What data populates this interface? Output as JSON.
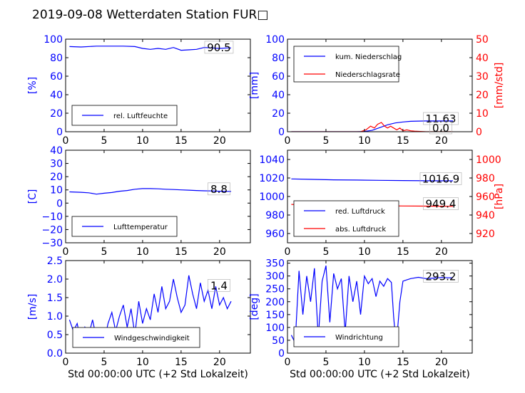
{
  "figure_title": "2019-09-08 Wetterdaten Station FUR□",
  "colors": {
    "blue": "#0000ff",
    "red": "#ff0000",
    "black": "#000000",
    "light_blue": "#8080ff"
  },
  "chart_data": [
    {
      "id": "humidity",
      "type": "line",
      "xlim": [
        0,
        24
      ],
      "ylim": [
        0,
        100
      ],
      "xticks": [
        0,
        5,
        10,
        15,
        20
      ],
      "yticks": [
        0,
        20,
        40,
        60,
        80,
        100
      ],
      "ylabel": "[%]",
      "ylabel_color": "#0000ff",
      "legend_loc": "lower-left",
      "current_value": "90.5",
      "series": [
        {
          "name": "rel. Luftfeuchte",
          "color": "#0000ff",
          "axis": "left",
          "x": [
            0.5,
            2,
            4,
            6,
            7.5,
            9,
            10,
            11,
            12,
            13,
            14,
            15,
            16,
            17,
            18,
            19,
            20,
            21,
            21.5
          ],
          "y": [
            92,
            91.5,
            92.5,
            92.5,
            92.5,
            92,
            90,
            89,
            90,
            89,
            91,
            88,
            88.5,
            89,
            91,
            90.5,
            90,
            90.5,
            90.5
          ]
        }
      ]
    },
    {
      "id": "precipitation",
      "type": "line",
      "xlim": [
        0,
        24
      ],
      "ylim": [
        0,
        100
      ],
      "y2lim": [
        0,
        50
      ],
      "xticks": [
        0,
        5,
        10,
        15,
        20
      ],
      "yticks": [
        0,
        20,
        40,
        60,
        80,
        100
      ],
      "y2ticks": [
        0,
        10,
        20,
        30,
        40,
        50
      ],
      "ylabel": "[mm]",
      "ylabel_color": "#0000ff",
      "y2label": "[mm/std]",
      "y2label_color": "#ff0000",
      "legend_loc": "top-left",
      "current_value": "11.63",
      "current_value2": "0.0",
      "series": [
        {
          "name": "kum. Niederschlag",
          "color": "#0000ff",
          "axis": "left",
          "x": [
            0.5,
            9,
            10,
            11,
            12,
            13,
            14,
            15,
            16,
            17,
            18,
            19,
            20,
            21,
            21.5
          ],
          "y": [
            0,
            0,
            0.3,
            1.5,
            4.5,
            7.5,
            9.5,
            10.5,
            11.2,
            11.5,
            11.6,
            11.63,
            11.63,
            11.63,
            11.63
          ]
        },
        {
          "name": "Niederschlagsrate",
          "color": "#ff0000",
          "axis": "right",
          "x": [
            0.5,
            9.5,
            10.2,
            10.8,
            11.3,
            11.7,
            12.2,
            12.6,
            13.0,
            13.4,
            13.8,
            14.2,
            14.6,
            15.0,
            15.5,
            16.0,
            16.5,
            17.0,
            18,
            21.5
          ],
          "y": [
            0,
            0,
            1,
            3,
            2,
            4,
            5,
            3,
            2,
            3,
            2,
            1,
            2,
            0.5,
            1,
            0.5,
            0.3,
            0.2,
            0,
            0
          ]
        }
      ]
    },
    {
      "id": "temperature",
      "type": "line",
      "xlim": [
        0,
        24
      ],
      "ylim": [
        -30,
        40
      ],
      "xticks": [
        0,
        5,
        10,
        15,
        20
      ],
      "yticks": [
        -30,
        -20,
        -10,
        0,
        10,
        20,
        30,
        40
      ],
      "ylabel": "[C]",
      "ylabel_color": "#0000ff",
      "legend_loc": "lower-left",
      "current_value": "8.8",
      "series": [
        {
          "name": "Lufttemperatur",
          "color": "#0000ff",
          "axis": "left",
          "x": [
            0.5,
            2,
            3,
            4,
            5,
            6,
            7,
            8,
            9,
            10,
            11,
            12,
            13,
            14,
            15,
            16,
            17,
            18,
            19,
            20,
            21,
            21.5
          ],
          "y": [
            8.5,
            8.2,
            7.8,
            6.8,
            7.5,
            8,
            9,
            9.5,
            10.5,
            11,
            11,
            10.8,
            10.5,
            10.3,
            10,
            9.8,
            9.5,
            9.3,
            9.2,
            9.0,
            8.9,
            8.8
          ]
        }
      ]
    },
    {
      "id": "pressure",
      "type": "line",
      "xlim": [
        0,
        24
      ],
      "ylim": [
        950,
        1050
      ],
      "y2lim": [
        910,
        1010
      ],
      "xticks": [
        0,
        5,
        10,
        15,
        20
      ],
      "yticks": [
        960,
        980,
        1000,
        1020,
        1040
      ],
      "y2ticks": [
        920,
        940,
        960,
        980,
        1000
      ],
      "ylabel": "",
      "y2label": "[hPa]",
      "y2label_color": "#ff0000",
      "legend_loc": "lower-left",
      "current_value": "1016.9",
      "current_value2": "949.4",
      "series": [
        {
          "name": "red. Luftdruck",
          "color": "#0000ff",
          "axis": "left",
          "x": [
            0.5,
            3,
            6,
            9,
            12,
            15,
            18,
            21.5
          ],
          "y": [
            1019,
            1018.5,
            1018,
            1017.8,
            1017.5,
            1017.2,
            1017.0,
            1016.9
          ]
        },
        {
          "name": "abs. Luftdruck",
          "color": "#ff0000",
          "axis": "right",
          "x": [
            0.5,
            3,
            6,
            9,
            12,
            15,
            18,
            21.5
          ],
          "y": [
            951.5,
            951,
            950.5,
            950.3,
            950,
            949.8,
            949.6,
            949.4
          ]
        }
      ]
    },
    {
      "id": "wind_speed",
      "type": "line",
      "xlim": [
        0,
        24
      ],
      "ylim": [
        0,
        2.5
      ],
      "xticks": [
        0,
        5,
        10,
        15,
        20
      ],
      "yticks": [
        0.0,
        0.5,
        1.0,
        1.5,
        2.0,
        2.5
      ],
      "ytick_format": "1f",
      "xlabel": "Std 00:00:00 UTC (+2 Std Lokalzeit)",
      "ylabel": "[m/s]",
      "ylabel_color": "#0000ff",
      "legend_loc": "lower-center",
      "current_value": "1.4",
      "series": [
        {
          "name": "Windgeschwindigkeit",
          "color": "#0000ff",
          "axis": "left",
          "x": [
            0.5,
            1.0,
            1.5,
            2.0,
            2.5,
            3.0,
            3.5,
            4.0,
            4.5,
            5.0,
            5.5,
            6.0,
            6.5,
            7.0,
            7.5,
            8.0,
            8.5,
            9.0,
            9.5,
            10.0,
            10.5,
            11.0,
            11.5,
            12.0,
            12.5,
            13.0,
            13.5,
            14.0,
            14.5,
            15.0,
            15.5,
            16.0,
            16.5,
            17.0,
            17.5,
            18.0,
            18.5,
            19.0,
            19.5,
            20.0,
            20.5,
            21.0,
            21.5
          ],
          "y": [
            0.9,
            0.6,
            0.8,
            0.3,
            0.7,
            0.5,
            0.9,
            0.4,
            0.6,
            0.3,
            0.8,
            1.1,
            0.6,
            1.0,
            1.3,
            0.7,
            1.2,
            0.5,
            1.4,
            0.8,
            1.2,
            0.9,
            1.6,
            1.1,
            1.8,
            1.2,
            1.4,
            2.0,
            1.5,
            1.1,
            1.3,
            2.1,
            1.6,
            1.2,
            1.9,
            1.4,
            1.7,
            1.2,
            1.8,
            1.3,
            1.5,
            1.2,
            1.4
          ]
        }
      ]
    },
    {
      "id": "wind_direction",
      "type": "line",
      "xlim": [
        0,
        24
      ],
      "ylim": [
        0,
        360
      ],
      "xticks": [
        0,
        5,
        10,
        15,
        20
      ],
      "yticks": [
        0,
        50,
        100,
        150,
        200,
        250,
        300,
        350
      ],
      "xlabel": "Std 00:00:00 UTC (+2 Std Lokalzeit)",
      "ylabel": "[deg]",
      "ylabel_color": "#0000ff",
      "legend_loc": "lower-left",
      "current_value": "293.2",
      "series": [
        {
          "name": "Windrichtung",
          "color": "#0000ff",
          "axis": "left",
          "x": [
            0.5,
            1.0,
            1.5,
            2.0,
            2.5,
            3.0,
            3.5,
            4.0,
            4.5,
            5.0,
            5.5,
            6.0,
            6.5,
            7.0,
            7.5,
            8.0,
            8.5,
            9.0,
            9.5,
            10.0,
            10.5,
            11.0,
            11.5,
            12.0,
            12.5,
            13.0,
            13.5,
            13.8,
            14.0,
            14.3,
            14.6,
            15.0,
            15.5,
            16.0,
            17.0,
            18.0,
            19.0,
            20.0,
            21.0,
            21.5
          ],
          "y": [
            70,
            40,
            320,
            150,
            300,
            200,
            330,
            60,
            280,
            340,
            120,
            310,
            250,
            290,
            80,
            300,
            200,
            280,
            150,
            300,
            270,
            290,
            220,
            280,
            260,
            290,
            275,
            140,
            70,
            90,
            200,
            280,
            285,
            290,
            295,
            290,
            292,
            294,
            293,
            293.2
          ]
        }
      ]
    }
  ]
}
